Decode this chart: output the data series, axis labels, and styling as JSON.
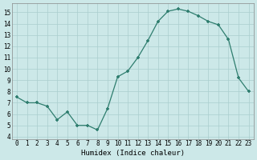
{
  "x": [
    0,
    1,
    2,
    3,
    4,
    5,
    6,
    7,
    8,
    9,
    10,
    11,
    12,
    13,
    14,
    15,
    16,
    17,
    18,
    19,
    20,
    21,
    22,
    23
  ],
  "y": [
    7.5,
    7.0,
    7.0,
    6.7,
    5.5,
    6.2,
    5.0,
    5.0,
    4.6,
    6.5,
    9.3,
    9.8,
    11.0,
    12.5,
    14.2,
    15.1,
    15.3,
    15.1,
    14.7,
    14.2,
    13.9,
    12.6,
    9.2,
    8.0
  ],
  "xlabel": "Humidex (Indice chaleur)",
  "ylabel": "",
  "xlim_min": -0.5,
  "xlim_max": 23.5,
  "ylim_min": 3.8,
  "ylim_max": 15.8,
  "yticks": [
    4,
    5,
    6,
    7,
    8,
    9,
    10,
    11,
    12,
    13,
    14,
    15
  ],
  "xticks": [
    0,
    1,
    2,
    3,
    4,
    5,
    6,
    7,
    8,
    9,
    10,
    11,
    12,
    13,
    14,
    15,
    16,
    17,
    18,
    19,
    20,
    21,
    22,
    23
  ],
  "xtick_labels": [
    "0",
    "1",
    "2",
    "3",
    "4",
    "5",
    "6",
    "7",
    "8",
    "9",
    "10",
    "11",
    "12",
    "13",
    "14",
    "15",
    "16",
    "17",
    "18",
    "19",
    "20",
    "21",
    "22",
    "23"
  ],
  "line_color": "#2e7d6e",
  "bg_color": "#cce8e8",
  "grid_color": "#aacece",
  "label_fontsize": 6.5,
  "tick_fontsize": 5.5
}
